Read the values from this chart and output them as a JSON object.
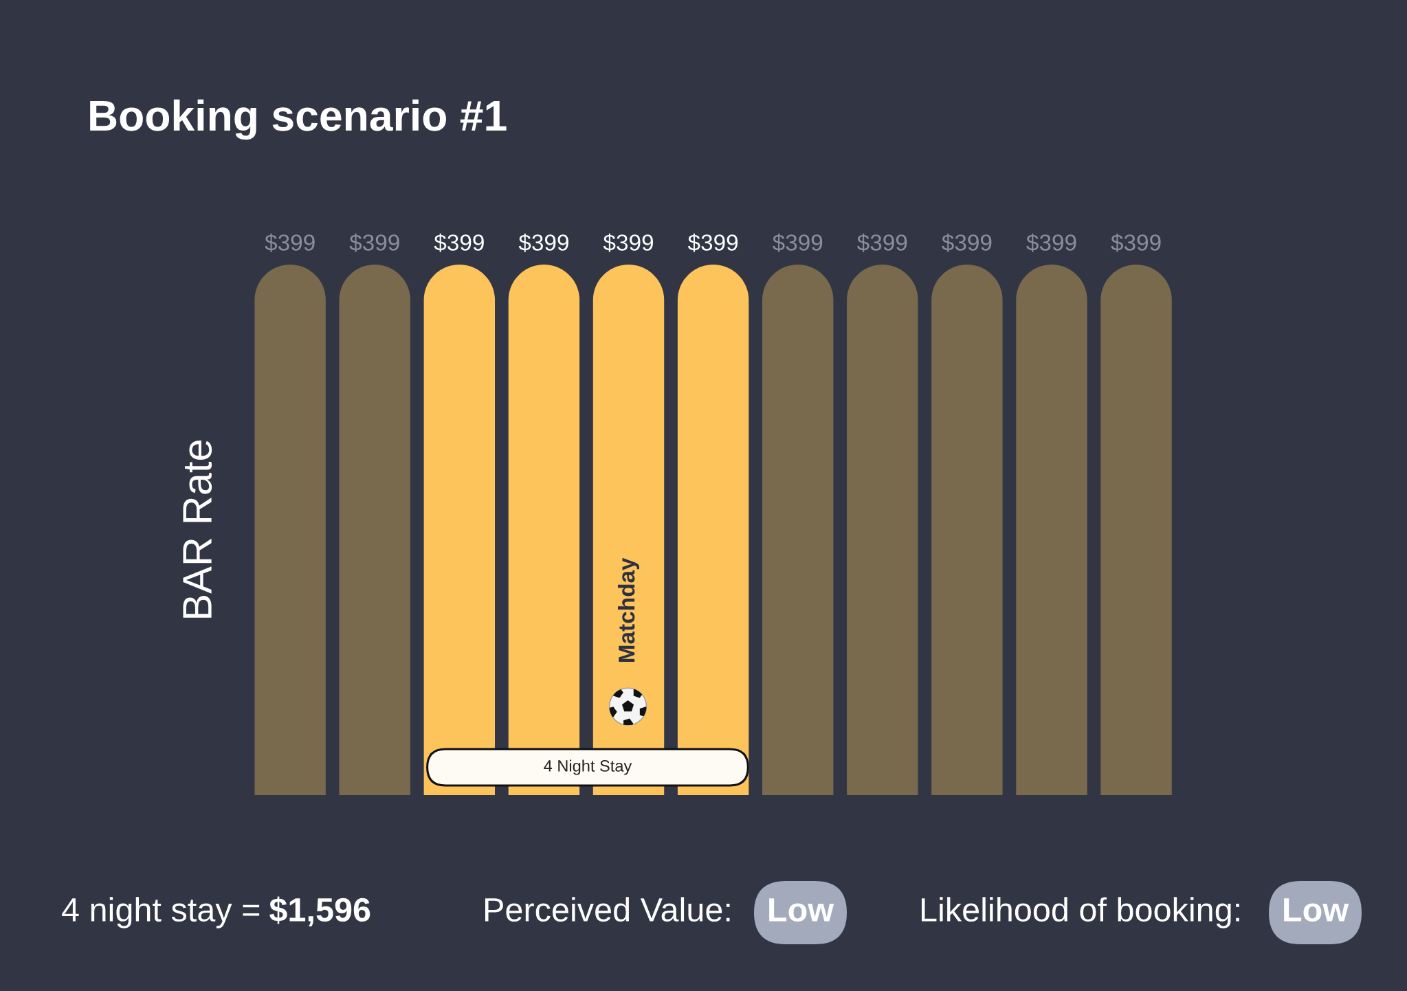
{
  "chart_data": {
    "type": "bar",
    "title": "Booking scenario #1",
    "ylabel": "BAR Rate",
    "categories": [
      null,
      null,
      null,
      null,
      null,
      null,
      null,
      null,
      null,
      null,
      null
    ],
    "values": [
      399,
      399,
      399,
      399,
      399,
      399,
      399,
      399,
      399,
      399,
      399
    ],
    "colors": [
      "#7a6a4d",
      "#7a6a4d",
      "#fec45c",
      "#fec45c",
      "#fec45c",
      "#fec45c",
      "#7a6a4d",
      "#7a6a4d",
      "#7a6a4d",
      "#7a6a4d",
      "#7a6a4d"
    ],
    "value_labels": [
      "$399",
      "$399",
      "$399",
      "$399",
      "$399",
      "$399",
      "$399",
      "$399",
      "$399",
      "$399",
      "$399"
    ],
    "tick_labels": false,
    "annotations": [
      "Matchday",
      "4 Night Stay",
      "4 night stay =",
      "$1,596",
      "Perceived Value:",
      "Low",
      "Likelihood of booking:",
      "Low"
    ]
  }
}
